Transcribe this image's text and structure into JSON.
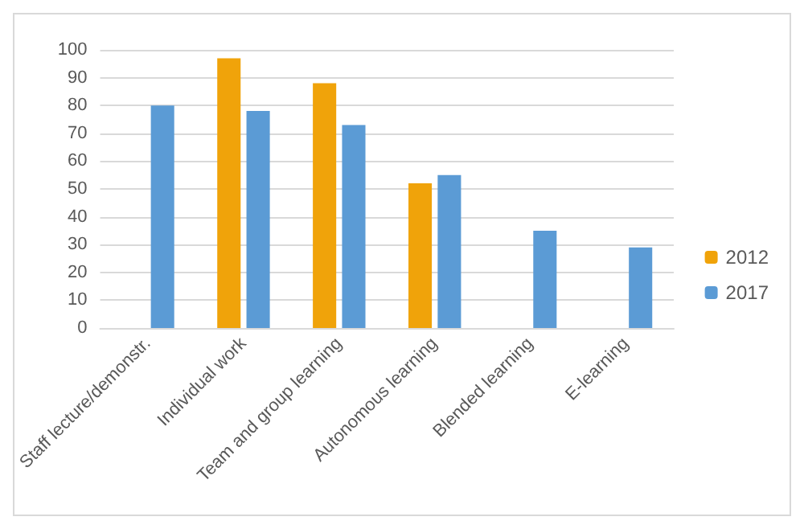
{
  "chart_data": {
    "type": "bar",
    "categories": [
      "Staff lecture/demonstr.",
      "Individual work",
      "Team and group learning",
      "Autonomous learning",
      "Blended learning",
      "E-learning"
    ],
    "series": [
      {
        "name": "2012",
        "color": "#f0a30a",
        "values": [
          null,
          97,
          88,
          52,
          null,
          null
        ]
      },
      {
        "name": "2017",
        "color": "#5b9bd5",
        "values": [
          80,
          78,
          73,
          55,
          35,
          29
        ]
      }
    ],
    "ylim": [
      0,
      100
    ],
    "yticks": [
      0,
      10,
      20,
      30,
      40,
      50,
      60,
      70,
      80,
      90,
      100
    ],
    "grid": "y",
    "legend": "right"
  }
}
